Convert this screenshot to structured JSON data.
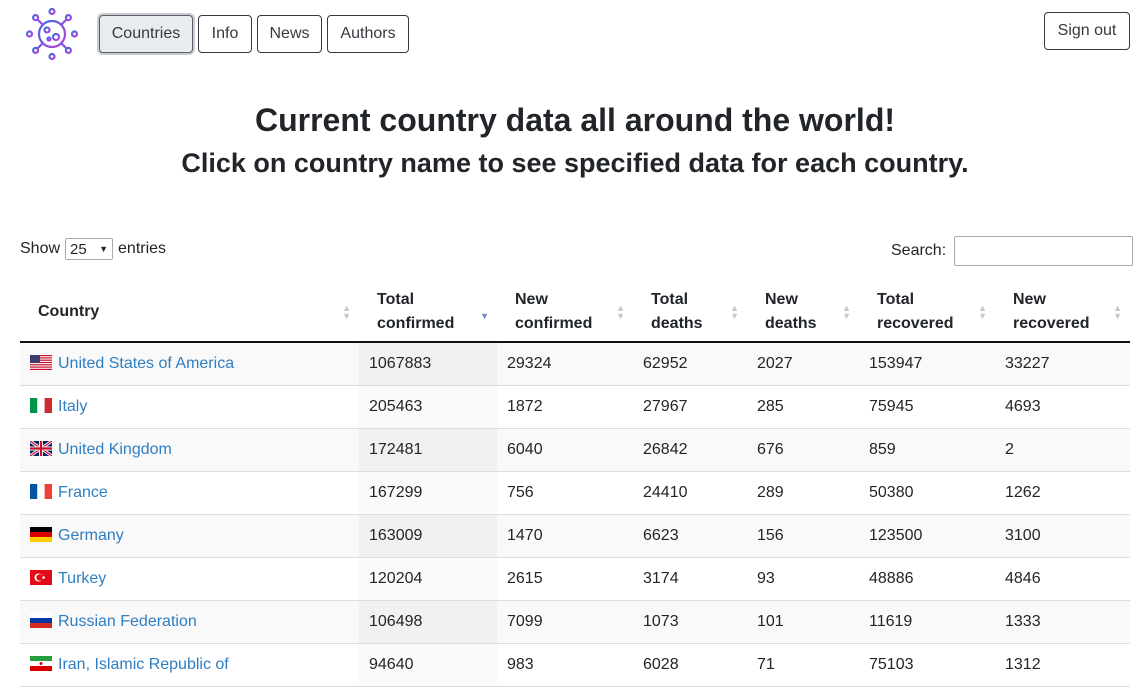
{
  "nav": {
    "countries": "Countries",
    "info": "Info",
    "news": "News",
    "authors": "Authors",
    "signout": "Sign out"
  },
  "heading": {
    "title": "Current country data all around the world!",
    "subtitle": "Click on country name to see specified data for each country."
  },
  "controls": {
    "show_label": "Show",
    "entries_value": "25",
    "entries_label": "entries",
    "search_label": "Search:",
    "search_value": ""
  },
  "table": {
    "columns": [
      "Country",
      "Total confirmed",
      "New confirmed",
      "Total deaths",
      "New deaths",
      "Total recovered",
      "New recovered"
    ],
    "sorted_column": "Total confirmed",
    "sort_direction": "desc",
    "rows": [
      {
        "country": "United States of America",
        "flag": "us-flag",
        "total_confirmed": "1067883",
        "new_confirmed": "29324",
        "total_deaths": "62952",
        "new_deaths": "2027",
        "total_recovered": "153947",
        "new_recovered": "33227"
      },
      {
        "country": "Italy",
        "flag": "it-flag",
        "total_confirmed": "205463",
        "new_confirmed": "1872",
        "total_deaths": "27967",
        "new_deaths": "285",
        "total_recovered": "75945",
        "new_recovered": "4693"
      },
      {
        "country": "United Kingdom",
        "flag": "gb-flag",
        "total_confirmed": "172481",
        "new_confirmed": "6040",
        "total_deaths": "26842",
        "new_deaths": "676",
        "total_recovered": "859",
        "new_recovered": "2"
      },
      {
        "country": "France",
        "flag": "fr-flag",
        "total_confirmed": "167299",
        "new_confirmed": "756",
        "total_deaths": "24410",
        "new_deaths": "289",
        "total_recovered": "50380",
        "new_recovered": "1262"
      },
      {
        "country": "Germany",
        "flag": "de-flag",
        "total_confirmed": "163009",
        "new_confirmed": "1470",
        "total_deaths": "6623",
        "new_deaths": "156",
        "total_recovered": "123500",
        "new_recovered": "3100"
      },
      {
        "country": "Turkey",
        "flag": "tr-flag",
        "total_confirmed": "120204",
        "new_confirmed": "2615",
        "total_deaths": "3174",
        "new_deaths": "93",
        "total_recovered": "48886",
        "new_recovered": "4846"
      },
      {
        "country": "Russian Federation",
        "flag": "ru-flag",
        "total_confirmed": "106498",
        "new_confirmed": "7099",
        "total_deaths": "1073",
        "new_deaths": "101",
        "total_recovered": "11619",
        "new_recovered": "1333"
      },
      {
        "country": "Iran, Islamic Republic of",
        "flag": "ir-flag",
        "total_confirmed": "94640",
        "new_confirmed": "983",
        "total_deaths": "6028",
        "new_deaths": "71",
        "total_recovered": "75103",
        "new_recovered": "1312"
      }
    ]
  },
  "colors": {
    "link": "#2f7ec2",
    "logo_gradient_start": "#3b6fe0",
    "logo_gradient_end": "#c03be0",
    "sort_active": "#6f84c4"
  }
}
